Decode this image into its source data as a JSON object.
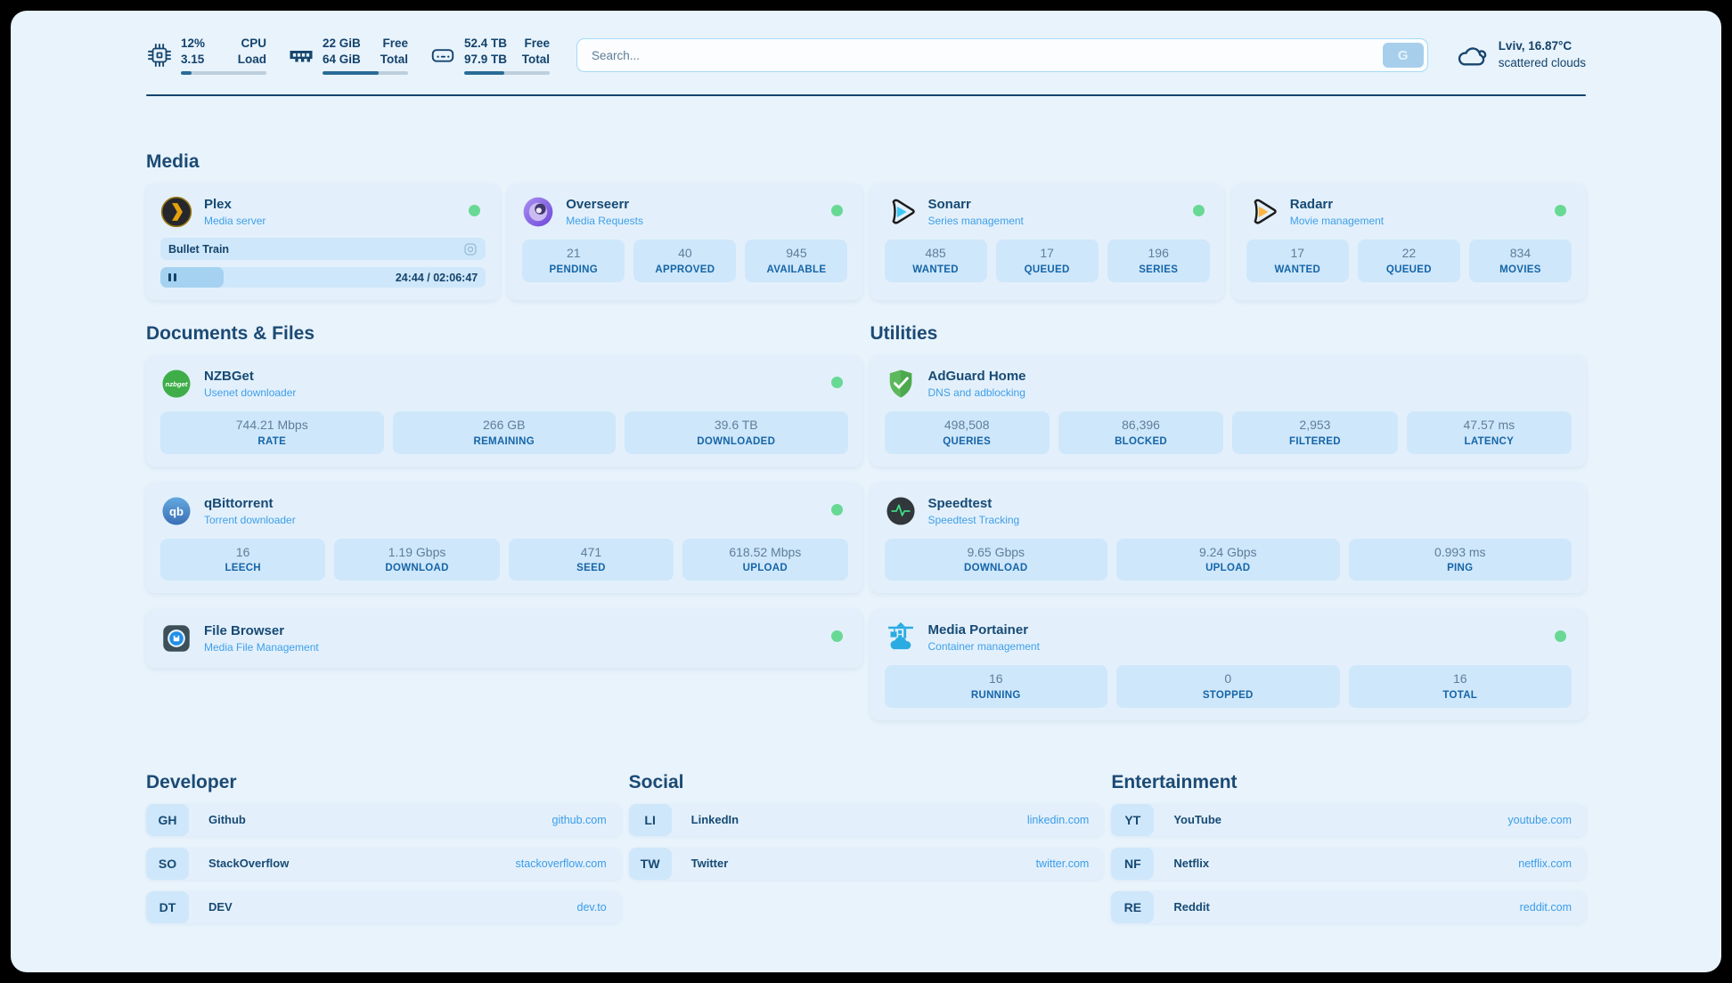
{
  "colors": {
    "page_bg": "#e8f3fc",
    "card_bg": "#e3f0fb",
    "tile_bg": "#cfe7fa",
    "navy_text": "#16456e",
    "link_blue": "#3f9fe8",
    "status_online": "#68d995",
    "progress_fill": "#a6d2f1"
  },
  "topbar": {
    "stats": [
      {
        "icon": "cpu-icon",
        "values": [
          "12%",
          "3.15"
        ],
        "labels": [
          "CPU",
          "Load"
        ],
        "progress_pct": 12
      },
      {
        "icon": "ram-icon",
        "values": [
          "22 GiB",
          "64 GiB"
        ],
        "labels": [
          "Free",
          "Total"
        ],
        "progress_pct": 66
      },
      {
        "icon": "disk-icon",
        "values": [
          "52.4 TB",
          "97.9 TB"
        ],
        "labels": [
          "Free",
          "Total"
        ],
        "progress_pct": 47
      }
    ],
    "search": {
      "placeholder": "Search...",
      "button_label": "G"
    },
    "weather": {
      "icon": "cloud-icon",
      "location": "Lviv, 16.87°C",
      "condition": "scattered clouds"
    }
  },
  "media": {
    "title": "Media",
    "cards": [
      {
        "name": "Plex",
        "subtitle": "Media server",
        "online": true,
        "now_playing": {
          "title": "Bullet Train",
          "time": "24:44 / 02:06:47",
          "progress_pct": 19.5
        }
      },
      {
        "name": "Overseerr",
        "subtitle": "Media Requests",
        "online": true,
        "stats": [
          {
            "value": "21",
            "label": "PENDING"
          },
          {
            "value": "40",
            "label": "APPROVED"
          },
          {
            "value": "945",
            "label": "AVAILABLE"
          }
        ]
      },
      {
        "name": "Sonarr",
        "subtitle": "Series management",
        "online": true,
        "stats": [
          {
            "value": "485",
            "label": "WANTED"
          },
          {
            "value": "17",
            "label": "QUEUED"
          },
          {
            "value": "196",
            "label": "SERIES"
          }
        ]
      },
      {
        "name": "Radarr",
        "subtitle": "Movie management",
        "online": true,
        "stats": [
          {
            "value": "17",
            "label": "WANTED"
          },
          {
            "value": "22",
            "label": "QUEUED"
          },
          {
            "value": "834",
            "label": "MOVIES"
          }
        ]
      }
    ]
  },
  "documents": {
    "title": "Documents & Files",
    "cards": [
      {
        "name": "NZBGet",
        "subtitle": "Usenet downloader",
        "online": true,
        "stats": [
          {
            "value": "744.21 Mbps",
            "label": "RATE"
          },
          {
            "value": "266 GB",
            "label": "REMAINING"
          },
          {
            "value": "39.6 TB",
            "label": "DOWNLOADED"
          }
        ]
      },
      {
        "name": "qBittorrent",
        "subtitle": "Torrent downloader",
        "online": true,
        "stats": [
          {
            "value": "16",
            "label": "LEECH"
          },
          {
            "value": "1.19 Gbps",
            "label": "DOWNLOAD"
          },
          {
            "value": "471",
            "label": "SEED"
          },
          {
            "value": "618.52 Mbps",
            "label": "UPLOAD"
          }
        ]
      },
      {
        "name": "File Browser",
        "subtitle": "Media File Management",
        "online": true
      }
    ]
  },
  "utilities": {
    "title": "Utilities",
    "cards": [
      {
        "name": "AdGuard Home",
        "subtitle": "DNS and adblocking",
        "stats": [
          {
            "value": "498,508",
            "label": "QUERIES"
          },
          {
            "value": "86,396",
            "label": "BLOCKED"
          },
          {
            "value": "2,953",
            "label": "FILTERED"
          },
          {
            "value": "47.57 ms",
            "label": "LATENCY"
          }
        ]
      },
      {
        "name": "Speedtest",
        "subtitle": "Speedtest Tracking",
        "stats": [
          {
            "value": "9.65 Gbps",
            "label": "DOWNLOAD"
          },
          {
            "value": "9.24 Gbps",
            "label": "UPLOAD"
          },
          {
            "value": "0.993 ms",
            "label": "PING"
          }
        ]
      },
      {
        "name": "Media Portainer",
        "subtitle": "Container management",
        "online": true,
        "stats": [
          {
            "value": "16",
            "label": "RUNNING"
          },
          {
            "value": "0",
            "label": "STOPPED"
          },
          {
            "value": "16",
            "label": "TOTAL"
          }
        ]
      }
    ]
  },
  "bookmarks": [
    {
      "title": "Developer",
      "links": [
        {
          "abbr": "GH",
          "name": "Github",
          "url": "github.com"
        },
        {
          "abbr": "SO",
          "name": "StackOverflow",
          "url": "stackoverflow.com"
        },
        {
          "abbr": "DT",
          "name": "DEV",
          "url": "dev.to"
        }
      ]
    },
    {
      "title": "Social",
      "links": [
        {
          "abbr": "LI",
          "name": "LinkedIn",
          "url": "linkedin.com"
        },
        {
          "abbr": "TW",
          "name": "Twitter",
          "url": "twitter.com"
        }
      ]
    },
    {
      "title": "Entertainment",
      "links": [
        {
          "abbr": "YT",
          "name": "YouTube",
          "url": "youtube.com"
        },
        {
          "abbr": "NF",
          "name": "Netflix",
          "url": "netflix.com"
        },
        {
          "abbr": "RE",
          "name": "Reddit",
          "url": "reddit.com"
        }
      ]
    }
  ]
}
